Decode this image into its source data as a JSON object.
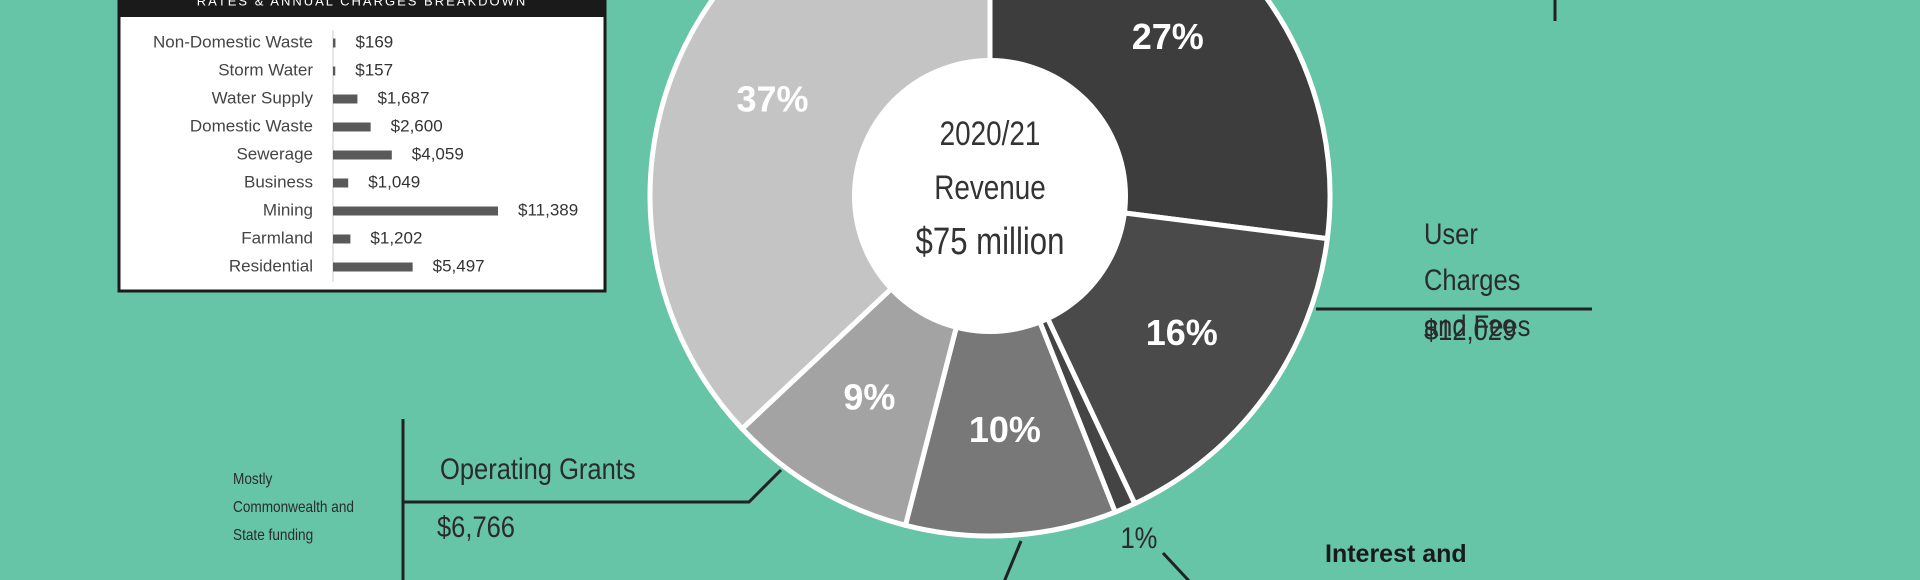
{
  "chart_data": [
    {
      "type": "hbar",
      "title": "RATES & ANNUAL CHARGES BREAKDOWN",
      "categories": [
        "Non-Domestic Waste",
        "Storm Water",
        "Water Supply",
        "Domestic Waste",
        "Sewerage",
        "Business",
        "Mining",
        "Farmland",
        "Residential"
      ],
      "values": [
        169,
        157,
        1687,
        2600,
        4059,
        1049,
        11389,
        1202,
        5497
      ],
      "value_labels": [
        "$169",
        "$157",
        "$1,687",
        "$2,600",
        "$4,059",
        "$1,049",
        "$11,389",
        "$1,202",
        "$5,497"
      ],
      "color": "#595959"
    },
    {
      "type": "pie",
      "center_text": [
        "2020/21",
        "Revenue",
        "$75 million"
      ],
      "values": [
        27,
        16,
        1,
        10,
        9,
        37
      ],
      "value_labels": [
        "27%",
        "16%",
        "1%",
        "10%",
        "9%",
        "37%"
      ],
      "colors": [
        "#3d3d3d",
        "#4a4a4a",
        "#444444",
        "#787878",
        "#a3a3a3",
        "#c4c4c4"
      ],
      "annotations": [
        "User Charges and Fees",
        "$12,029",
        "Operating Grants",
        "$6,766",
        "Mostly Commonwealth and State funding",
        "Interest and"
      ]
    }
  ]
}
